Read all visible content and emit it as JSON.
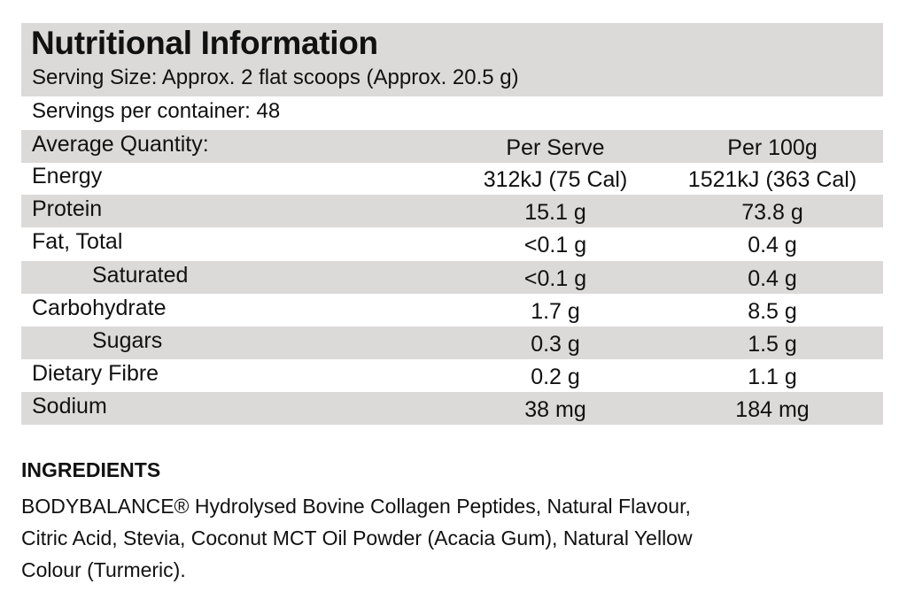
{
  "panel": {
    "title": "Nutritional Information",
    "serving_size": "Serving Size: Approx. 2 flat scoops (Approx. 20.5 g)",
    "servings_per_container": "Servings per container: 48",
    "header": {
      "label": "Average Quantity:",
      "col1": "Per Serve",
      "col2": "Per 100g"
    },
    "rows": [
      {
        "label": "Energy",
        "per_serve": "312kJ (75 Cal)",
        "per_100g": "1521kJ (363 Cal)"
      },
      {
        "label": "Protein",
        "per_serve": "15.1 g",
        "per_100g": "73.8 g"
      },
      {
        "label": "Fat, Total",
        "per_serve": "<0.1 g",
        "per_100g": "0.4 g"
      },
      {
        "label": "Saturated",
        "per_serve": "<0.1 g",
        "per_100g": "0.4 g"
      },
      {
        "label": "Carbohydrate",
        "per_serve": "1.7 g",
        "per_100g": "8.5 g"
      },
      {
        "label": "Sugars",
        "per_serve": "0.3 g",
        "per_100g": "1.5 g"
      },
      {
        "label": "Dietary Fibre",
        "per_serve": "0.2 g",
        "per_100g": "1.1 g"
      },
      {
        "label": "Sodium",
        "per_serve": "38 mg",
        "per_100g": "184 mg"
      }
    ]
  },
  "ingredients": {
    "heading": "INGREDIENTS",
    "lines": [
      "BODYBALANCE® Hydrolysed Bovine Collagen Peptides, Natural Flavour,",
      "Citric Acid, Stevia, Coconut MCT Oil Powder (Acacia Gum), Natural Yellow",
      "Colour (Turmeric)."
    ]
  },
  "colors": {
    "band": "#dcdad9",
    "text": "#111111"
  }
}
